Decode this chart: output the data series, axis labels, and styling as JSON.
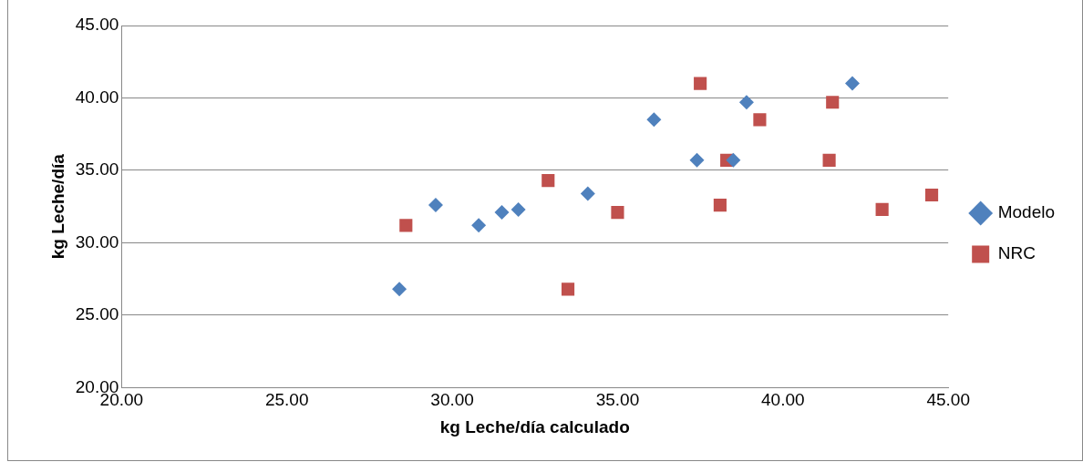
{
  "chart_data": {
    "type": "scatter",
    "xlabel": "kg Leche/día calculado",
    "ylabel": "kg Leche/día",
    "xlim": [
      20,
      45
    ],
    "xticks": [
      {
        "value": 20,
        "label": "20.00"
      },
      {
        "value": 25,
        "label": "25.00"
      },
      {
        "value": 30,
        "label": "30.00"
      },
      {
        "value": 35,
        "label": "35.00"
      },
      {
        "value": 40,
        "label": "40.00"
      },
      {
        "value": 45,
        "label": "45.00"
      }
    ],
    "ylim": [
      20,
      45
    ],
    "yticks": [
      {
        "value": 20,
        "label": "20.00"
      },
      {
        "value": 25,
        "label": "25.00"
      },
      {
        "value": 30,
        "label": "30.00"
      },
      {
        "value": 35,
        "label": "35.00"
      },
      {
        "value": 40,
        "label": "40.00"
      },
      {
        "value": 45,
        "label": "45.00"
      }
    ],
    "grid": "y",
    "legend": "right",
    "series": [
      {
        "name": "Modelo",
        "color": "#4f81bd",
        "marker": "diamond",
        "x": [
          28.4,
          29.5,
          30.8,
          31.5,
          32.0,
          34.1,
          36.1,
          37.4,
          38.5,
          38.9,
          42.1
        ],
        "values": [
          26.8,
          32.6,
          31.2,
          32.1,
          32.3,
          33.4,
          38.5,
          35.7,
          35.7,
          39.7,
          41.0
        ]
      },
      {
        "name": "NRC",
        "color": "#c0504d",
        "marker": "square",
        "x": [
          28.6,
          32.9,
          33.5,
          35.0,
          37.5,
          38.3,
          38.1,
          39.3,
          41.5,
          41.4,
          43.0,
          44.5
        ],
        "values": [
          31.2,
          34.3,
          26.8,
          32.1,
          41.0,
          35.7,
          32.6,
          38.5,
          39.7,
          35.7,
          32.3,
          33.3
        ]
      }
    ]
  }
}
